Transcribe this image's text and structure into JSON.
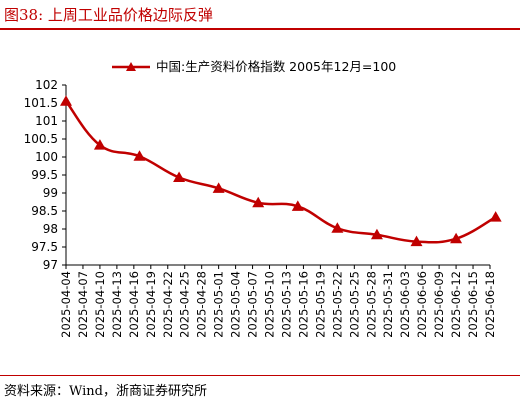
{
  "figure": {
    "title": "图38:   上周工业品价格边际反弹",
    "source": "资料来源：Wind，浙商证券研究所"
  },
  "colors": {
    "series": "#c00000",
    "accent": "#c00000"
  },
  "chart_data": {
    "type": "line",
    "x": [
      "2025-04-04",
      "2025-04-10",
      "2025-04-17",
      "2025-04-24",
      "2025-05-01",
      "2025-05-08",
      "2025-05-15",
      "2025-05-22",
      "2025-05-29",
      "2025-06-05",
      "2025-06-12",
      "2025-06-19"
    ],
    "x_tick_labels": [
      "2025-04-04",
      "2025-04-07",
      "2025-04-10",
      "2025-04-13",
      "2025-04-16",
      "2025-04-19",
      "2025-04-22",
      "2025-04-25",
      "2025-04-28",
      "2025-05-01",
      "2025-05-04",
      "2025-05-07",
      "2025-05-10",
      "2025-05-13",
      "2025-05-16",
      "2025-05-19",
      "2025-05-22",
      "2025-05-25",
      "2025-05-28",
      "2025-05-31",
      "2025-06-03",
      "2025-06-06",
      "2025-06-09",
      "2025-06-12",
      "2025-06-15",
      "2025-06-18"
    ],
    "series": [
      {
        "name": "中国:生产资料价格指数  2005年12月=100",
        "values": [
          101.55,
          100.33,
          100.02,
          99.43,
          99.13,
          98.73,
          98.63,
          98.02,
          97.84,
          97.65,
          97.73,
          98.33
        ]
      }
    ],
    "y_ticks": [
      "97",
      "97.5",
      "98",
      "98.5",
      "99",
      "99.5",
      "100",
      "100.5",
      "101",
      "101.5",
      "102"
    ],
    "ylim": [
      97,
      102
    ],
    "xlabel": "",
    "ylabel": "",
    "grid": false,
    "legend_position": "top-center",
    "marker": "triangle"
  }
}
